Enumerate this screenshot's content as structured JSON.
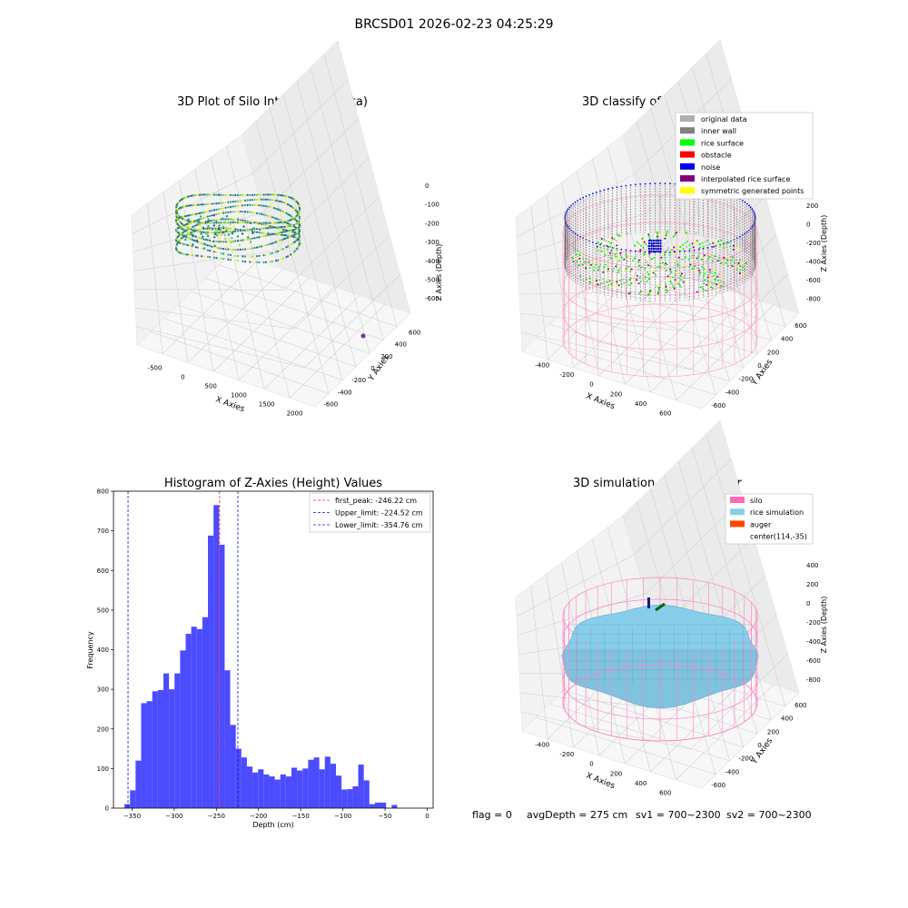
{
  "figure_title": "BRCSD01 2026-02-23 04:25:29",
  "status_line": {
    "flag": "flag = 0",
    "avg_depth": "avgDepth = 275 cm",
    "sv1": "sv1 = 700~2300",
    "sv2": "sv2 = 700~2300"
  },
  "chart_data": [
    {
      "type": "scatter",
      "projection": "3d",
      "title": "3D Plot of Silo Interior(row data)",
      "xlabel": "X Axies",
      "ylabel": "Y Axies",
      "zlabel": "Z Axies (Depth)",
      "x_ticks": [
        "-500",
        "0",
        "500",
        "1000",
        "1500",
        "2000"
      ],
      "y_ticks": [
        "-600",
        "-400",
        "-200",
        "0",
        "200",
        "400",
        "600"
      ],
      "z_ticks": [
        "0",
        "-100",
        "-200",
        "-300",
        "-400",
        "-500",
        "-600"
      ],
      "colormap": "viridis",
      "outlier_point": {
        "color": "#7b3294"
      }
    },
    {
      "type": "scatter",
      "projection": "3d",
      "title": "3D classify of Silo Interior",
      "xlabel": "X Axies",
      "ylabel": "Y Axies",
      "zlabel": "Z Axies (Depth)",
      "x_ticks": [
        "-400",
        "-200",
        "0",
        "200",
        "400",
        "600"
      ],
      "y_ticks": [
        "-600",
        "-400",
        "-200",
        "0",
        "200",
        "400",
        "600"
      ],
      "z_ticks": [
        "200",
        "0",
        "-200",
        "-400",
        "-600",
        "-800"
      ],
      "legend_position": "top-right",
      "legend": [
        {
          "label": "original data",
          "color": "#b0b0b0"
        },
        {
          "label": "inner wall",
          "color": "#808080"
        },
        {
          "label": "rice surface",
          "color": "#00ff00"
        },
        {
          "label": "obstacle",
          "color": "#ff0000"
        },
        {
          "label": "noise",
          "color": "#0000ee"
        },
        {
          "label": "interpolated rice surface",
          "color": "#800080"
        },
        {
          "label": "symmetric generated points",
          "color": "#ffff00"
        }
      ]
    },
    {
      "type": "bar",
      "title": "Histogram of Z-Axies (Height) Values",
      "xlabel": "Depth (cm)",
      "ylabel": "Frequency",
      "xlim": [
        -372,
        7
      ],
      "ylim": [
        0,
        800
      ],
      "x_ticks": [
        -350,
        -300,
        -250,
        -200,
        -150,
        -100,
        -50,
        0
      ],
      "y_ticks": [
        0,
        100,
        200,
        300,
        400,
        500,
        600,
        700,
        800
      ],
      "bar_color": "#4b4bff",
      "bin_start": -359,
      "bin_width": 6.6,
      "values": [
        10,
        45,
        120,
        265,
        270,
        295,
        298,
        340,
        300,
        340,
        398,
        440,
        458,
        452,
        482,
        688,
        765,
        665,
        348,
        210,
        150,
        128,
        105,
        90,
        98,
        85,
        80,
        72,
        85,
        80,
        102,
        95,
        100,
        122,
        128,
        98,
        130,
        112,
        82,
        47,
        48,
        55,
        110,
        70,
        10,
        14,
        14,
        0,
        8
      ],
      "legend_position": "top-right",
      "vlines": [
        {
          "label": "first_peak: -246.22 cm",
          "x": -246.22,
          "color": "#ff2020"
        },
        {
          "label": "Upper_limit: -224.52 cm",
          "x": -224.52,
          "color": "#1010cc"
        },
        {
          "label": "Lower_limit: -354.76 cm",
          "x": -354.76,
          "color": "#1010cc"
        }
      ]
    },
    {
      "type": "area",
      "projection": "3d",
      "title": "3D simulation of Silo Interior",
      "xlabel": "X Axies",
      "ylabel": "Y Axies",
      "zlabel": "Z Axies (Depth)",
      "x_ticks": [
        "-400",
        "-200",
        "0",
        "200",
        "400",
        "600"
      ],
      "y_ticks": [
        "-600",
        "-400",
        "-200",
        "0",
        "200",
        "400",
        "600"
      ],
      "z_ticks": [
        "400",
        "200",
        "0",
        "-200",
        "-400",
        "-600",
        "-800"
      ],
      "legend_position": "top-right",
      "legend": [
        {
          "label": "silo",
          "color": "#ff69b4"
        },
        {
          "label": "rice simulation",
          "color": "#87ceeb"
        },
        {
          "label": "auger",
          "color": "#ff4500"
        },
        {
          "label": "center(114,-35)",
          "color": ""
        }
      ]
    }
  ]
}
